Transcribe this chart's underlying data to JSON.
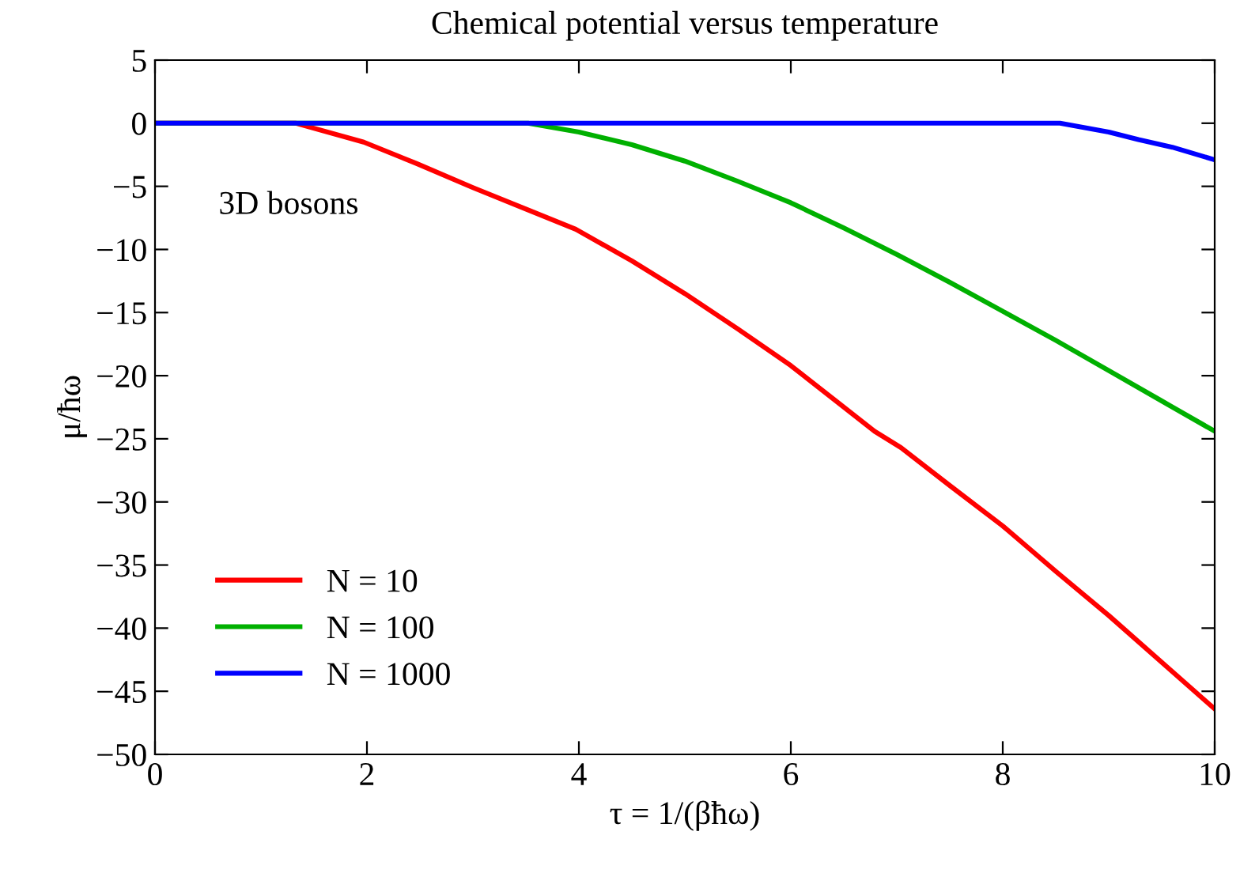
{
  "chart_data": {
    "type": "line",
    "title": "Chemical potential versus temperature",
    "xlabel": "τ = 1/(βħω)",
    "ylabel": "μ/ħω",
    "annotations": [
      "3D bosons"
    ],
    "series": [
      {
        "name": "N = 10",
        "color": "#ff0000",
        "x": [
          0,
          1,
          1.33,
          1.97,
          2.47,
          3,
          3.5,
          3.97,
          4.5,
          5,
          5.5,
          6,
          6.79,
          7.04,
          7.5,
          8,
          8.5,
          9,
          9.5,
          10
        ],
        "values": [
          0,
          0,
          0,
          -1.5,
          -3.2,
          -5.1,
          -6.8,
          -8.4,
          -10.9,
          -13.5,
          -16.3,
          -19.2,
          -24.4,
          -25.7,
          -28.7,
          -31.9,
          -35.5,
          -39.0,
          -42.7,
          -46.4
        ]
      },
      {
        "name": "N = 100",
        "color": "#00b000",
        "x": [
          0,
          3,
          3.52,
          4,
          4.5,
          5,
          5.5,
          6,
          6.5,
          7,
          7.5,
          8,
          8.5,
          9,
          9.5,
          10
        ],
        "values": [
          0,
          0,
          0,
          -0.7,
          -1.7,
          -3.0,
          -4.6,
          -6.3,
          -8.3,
          -10.4,
          -12.6,
          -14.9,
          -17.2,
          -19.6,
          -22.0,
          -24.4
        ]
      },
      {
        "name": "N = 1000",
        "color": "#0000ff",
        "x": [
          0,
          8,
          8.54,
          9,
          9.28,
          9.6,
          10
        ],
        "values": [
          0,
          0,
          0,
          -0.7,
          -1.3,
          -1.9,
          -2.9
        ]
      }
    ],
    "xlim": [
      0,
      10
    ],
    "ylim": [
      -50,
      5
    ],
    "xticks": [
      0,
      2,
      4,
      6,
      8,
      10
    ],
    "yticks": [
      -50,
      -45,
      -40,
      -35,
      -30,
      -25,
      -20,
      -15,
      -10,
      -5,
      0,
      5
    ],
    "grid": false,
    "legend": "bottom left",
    "line_style": "solid",
    "marker": "none"
  }
}
